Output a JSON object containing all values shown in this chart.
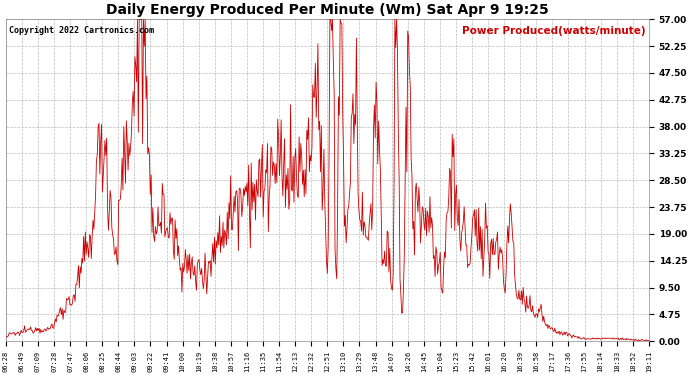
{
  "title": "Daily Energy Produced Per Minute (Wm) Sat Apr 9 19:25",
  "copyright": "Copyright 2022 Cartronics.com",
  "legend_label": "Power Produced(watts/minute)",
  "ylabel_values": [
    0.0,
    4.75,
    9.5,
    14.25,
    19.0,
    23.75,
    28.5,
    33.25,
    38.0,
    42.75,
    47.5,
    52.25,
    57.0
  ],
  "ymax": 57.0,
  "line_color": "#cc0000",
  "grid_color": "#bbbbbb",
  "background_color": "#ffffff",
  "x_labels": [
    "06:28",
    "06:49",
    "07:09",
    "07:28",
    "07:47",
    "08:06",
    "08:25",
    "08:44",
    "09:03",
    "09:22",
    "09:41",
    "10:00",
    "10:19",
    "10:38",
    "10:57",
    "11:16",
    "11:35",
    "11:54",
    "12:13",
    "12:32",
    "12:51",
    "13:10",
    "13:29",
    "13:48",
    "14:07",
    "14:26",
    "14:45",
    "15:04",
    "15:23",
    "15:42",
    "16:01",
    "16:20",
    "16:39",
    "16:58",
    "17:17",
    "17:36",
    "17:55",
    "18:14",
    "18:33",
    "18:52",
    "19:11"
  ]
}
